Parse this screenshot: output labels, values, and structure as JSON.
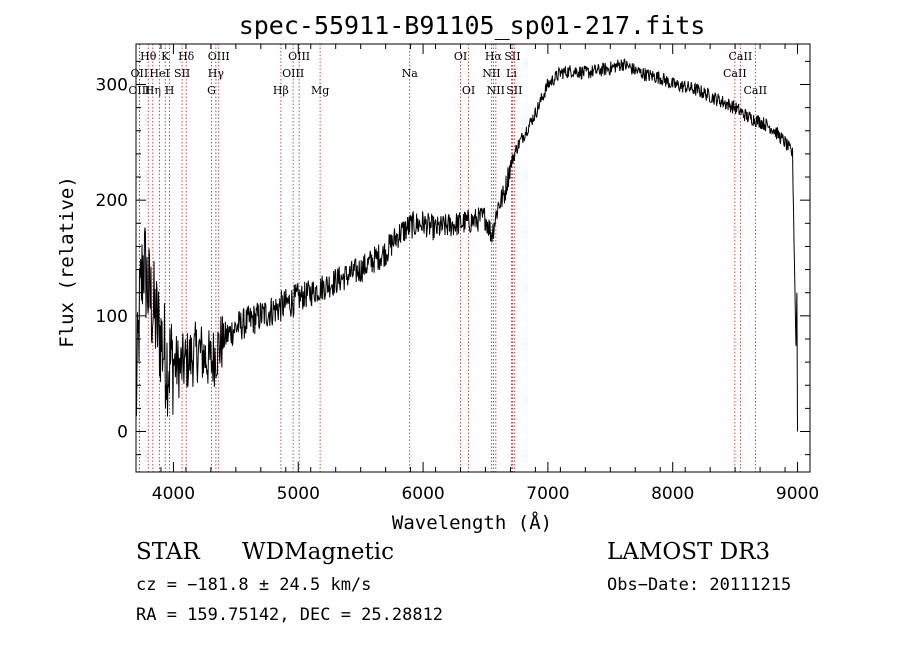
{
  "chart_data": {
    "type": "line",
    "title": "spec-55911-B91105_sp01-217.fits",
    "xlabel": "Wavelength (Å)",
    "ylabel": "Flux (relative)",
    "xlim": [
      3700,
      9100
    ],
    "ylim": [
      -35,
      335
    ],
    "xticks": [
      4000,
      5000,
      6000,
      7000,
      8000,
      9000
    ],
    "yticks": [
      0,
      100,
      200,
      300
    ],
    "grid": false,
    "series": [
      {
        "name": "flux",
        "anchors": [
          [
            3700,
            20
          ],
          [
            3730,
            110
          ],
          [
            3760,
            150
          ],
          [
            3800,
            120
          ],
          [
            3850,
            100
          ],
          [
            3900,
            80
          ],
          [
            3950,
            60
          ],
          [
            4000,
            60
          ],
          [
            4050,
            55
          ],
          [
            4100,
            60
          ],
          [
            4150,
            65
          ],
          [
            4200,
            70
          ],
          [
            4250,
            65
          ],
          [
            4300,
            60
          ],
          [
            4350,
            70
          ],
          [
            4400,
            80
          ],
          [
            4500,
            90
          ],
          [
            4600,
            95
          ],
          [
            4700,
            100
          ],
          [
            4800,
            105
          ],
          [
            4900,
            110
          ],
          [
            5000,
            115
          ],
          [
            5100,
            120
          ],
          [
            5200,
            125
          ],
          [
            5300,
            130
          ],
          [
            5400,
            135
          ],
          [
            5500,
            140
          ],
          [
            5600,
            148
          ],
          [
            5700,
            155
          ],
          [
            5800,
            170
          ],
          [
            5900,
            178
          ],
          [
            6000,
            180
          ],
          [
            6100,
            175
          ],
          [
            6200,
            178
          ],
          [
            6300,
            180
          ],
          [
            6400,
            182
          ],
          [
            6500,
            185
          ],
          [
            6550,
            170
          ],
          [
            6600,
            195
          ],
          [
            6650,
            205
          ],
          [
            6700,
            230
          ],
          [
            6750,
            245
          ],
          [
            6800,
            255
          ],
          [
            6900,
            275
          ],
          [
            7000,
            300
          ],
          [
            7100,
            310
          ],
          [
            7200,
            312
          ],
          [
            7300,
            310
          ],
          [
            7400,
            312
          ],
          [
            7500,
            314
          ],
          [
            7600,
            318
          ],
          [
            7700,
            312
          ],
          [
            7800,
            308
          ],
          [
            7900,
            306
          ],
          [
            8000,
            300
          ],
          [
            8100,
            298
          ],
          [
            8200,
            295
          ],
          [
            8300,
            290
          ],
          [
            8400,
            285
          ],
          [
            8500,
            280
          ],
          [
            8600,
            272
          ],
          [
            8700,
            268
          ],
          [
            8800,
            262
          ],
          [
            8900,
            250
          ],
          [
            8960,
            240
          ],
          [
            9000,
            0
          ]
        ]
      }
    ],
    "lines": [
      {
        "label": "Hθ",
        "x": 3798,
        "row": 1
      },
      {
        "label": "OII",
        "x": 3727,
        "row": 2
      },
      {
        "label": "OIII",
        "x": 3727,
        "row": 3
      },
      {
        "label": "Hη",
        "x": 3835,
        "row": 3
      },
      {
        "label": "K",
        "x": 3934,
        "row": 1
      },
      {
        "label": "HeI",
        "x": 3889,
        "row": 2
      },
      {
        "label": "SII",
        "x": 4069,
        "row": 2
      },
      {
        "label": "H",
        "x": 3969,
        "row": 3
      },
      {
        "label": "Hδ",
        "x": 4102,
        "row": 1
      },
      {
        "label": "OIII",
        "x": 4363,
        "row": 1
      },
      {
        "label": "Hγ",
        "x": 4340,
        "row": 2
      },
      {
        "label": "G",
        "x": 4305,
        "row": 3
      },
      {
        "label": "OIII",
        "x": 5007,
        "row": 1
      },
      {
        "label": "OIII",
        "x": 4959,
        "row": 2
      },
      {
        "label": "Hβ",
        "x": 4861,
        "row": 3
      },
      {
        "label": "Mg",
        "x": 5175,
        "row": 3
      },
      {
        "label": "Na",
        "x": 5893,
        "row": 2
      },
      {
        "label": "OI",
        "x": 6300,
        "row": 1
      },
      {
        "label": "OI",
        "x": 6364,
        "row": 3
      },
      {
        "label": "Hα",
        "x": 6563,
        "row": 1
      },
      {
        "label": "SII",
        "x": 6716,
        "row": 1
      },
      {
        "label": "NII",
        "x": 6548,
        "row": 2
      },
      {
        "label": "Li",
        "x": 6708,
        "row": 2
      },
      {
        "label": "NII",
        "x": 6583,
        "row": 3
      },
      {
        "label": "SII",
        "x": 6731,
        "row": 3
      },
      {
        "label": "CaII",
        "x": 8542,
        "row": 1
      },
      {
        "label": "CaII",
        "x": 8498,
        "row": 2
      },
      {
        "label": "CaII",
        "x": 8662,
        "row": 3
      }
    ]
  },
  "info": {
    "class": "STAR",
    "subclass": "WDMagnetic",
    "survey": "LAMOST DR3",
    "cz": "cz = −181.8 ± 24.5 km/s",
    "obs_date": "Obs−Date: 20111215",
    "coords": "RA = 159.75142, DEC =  25.28812"
  }
}
